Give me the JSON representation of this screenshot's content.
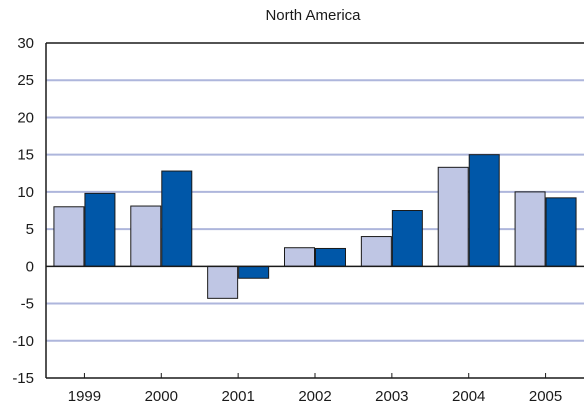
{
  "chart_data": {
    "type": "bar",
    "title": "North America",
    "categories": [
      "1999",
      "2000",
      "2001",
      "2002",
      "2003",
      "2004",
      "2005"
    ],
    "series": [
      {
        "values": [
          8.0,
          8.1,
          -4.3,
          2.5,
          4.0,
          13.3,
          10.0
        ]
      },
      {
        "values": [
          9.8,
          12.8,
          -1.6,
          2.4,
          7.5,
          15.0,
          9.2
        ]
      }
    ],
    "ylim": [
      -15,
      30
    ],
    "yticks": [
      30,
      25,
      20,
      15,
      10,
      5,
      0,
      -5,
      -10,
      -15
    ],
    "grid": true,
    "colors": {
      "series": [
        "#bfc6e4",
        "#0057a8"
      ],
      "grid": "#aeb6dc",
      "axis": "#1a1a1a",
      "bar_outline": "#1a1a1a"
    }
  }
}
